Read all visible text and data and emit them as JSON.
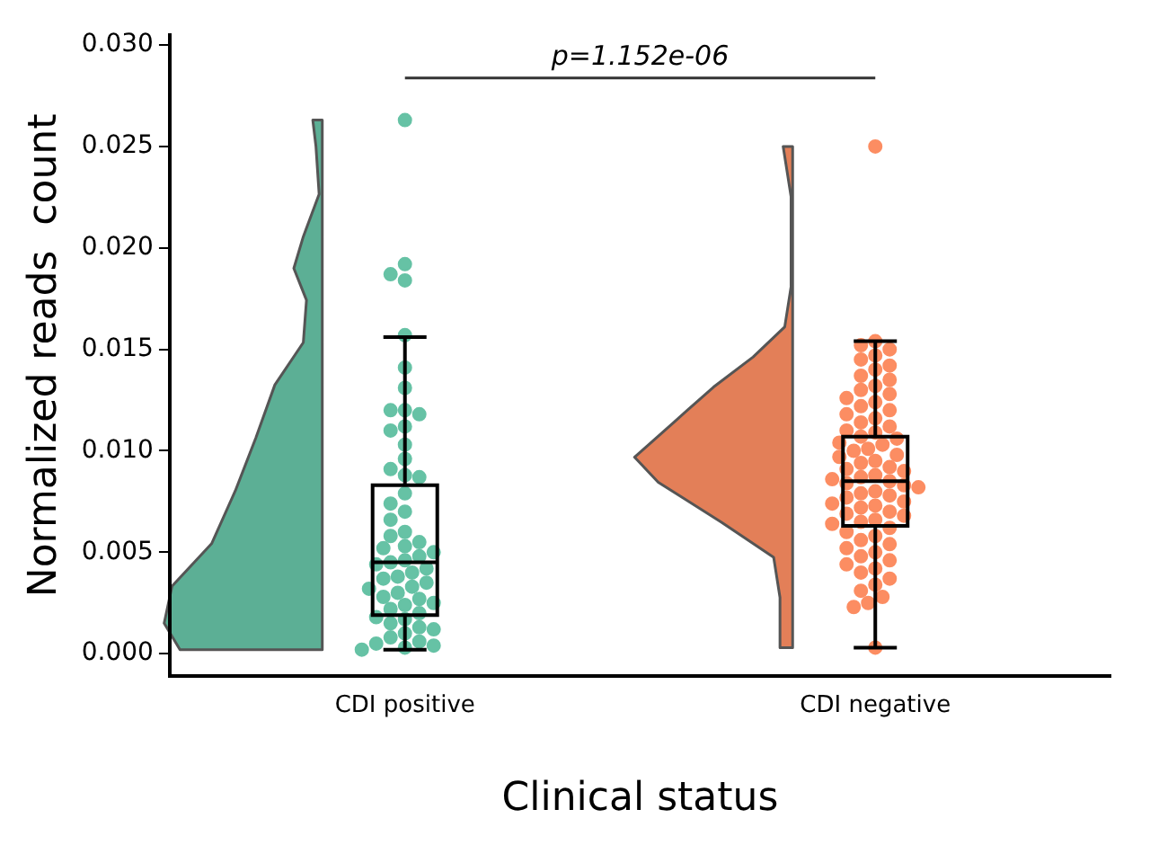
{
  "chart_data": {
    "type": "box",
    "categories": [
      "CDI positive",
      "CDI negative"
    ],
    "xlabel": "Clinical status",
    "ylabel": "Normalized reads  count",
    "ylim": [
      -0.0011,
      0.0305
    ],
    "yticks": [
      {
        "value": 0,
        "label": "0.000"
      },
      {
        "value": 0.005,
        "label": "0.005"
      },
      {
        "value": 0.01,
        "label": "0.010"
      },
      {
        "value": 0.015,
        "label": "0.015"
      },
      {
        "value": 0.02,
        "label": "0.020"
      },
      {
        "value": 0.025,
        "label": "0.025"
      },
      {
        "value": 0.03,
        "label": "0.030"
      }
    ],
    "grid": false,
    "legend": false,
    "annotations": [
      "p=1.152e-06"
    ],
    "series": [
      {
        "boxes": [
          {
            "low": 0.0002,
            "q1": 0.0019,
            "median": 0.0045,
            "q3": 0.0083,
            "high": 0.0156
          },
          {
            "low": 0.0003,
            "q1": 0.0063,
            "median": 0.0085,
            "q3": 0.0107,
            "high": 0.0154
          }
        ]
      },
      {
        "type": "scatter",
        "color": "#66c2a5",
        "x": [
          "CDI positive",
          "CDI positive",
          "CDI positive",
          "CDI positive",
          "CDI positive",
          "CDI positive",
          "CDI positive",
          "CDI positive",
          "CDI positive",
          "CDI positive",
          "CDI positive",
          "CDI positive",
          "CDI positive",
          "CDI positive",
          "CDI positive",
          "CDI positive",
          "CDI positive",
          "CDI positive",
          "CDI positive",
          "CDI positive",
          "CDI positive",
          "CDI positive",
          "CDI positive",
          "CDI positive",
          "CDI positive",
          "CDI positive",
          "CDI positive",
          "CDI positive",
          "CDI positive",
          "CDI positive",
          "CDI positive",
          "CDI positive",
          "CDI positive",
          "CDI positive",
          "CDI positive",
          "CDI positive",
          "CDI positive",
          "CDI positive",
          "CDI positive",
          "CDI positive",
          "CDI positive",
          "CDI positive",
          "CDI positive",
          "CDI positive",
          "CDI positive",
          "CDI positive",
          "CDI positive",
          "CDI positive",
          "CDI positive",
          "CDI positive",
          "CDI positive",
          "CDI positive",
          "CDI positive",
          "CDI positive",
          "CDI positive",
          "CDI positive",
          "CDI positive"
        ],
        "values": [
          0.0263,
          0.0192,
          0.0184,
          0.0187,
          0.0157,
          0.0141,
          0.0131,
          0.012,
          0.012,
          0.0118,
          0.0112,
          0.011,
          0.0103,
          0.0096,
          0.0091,
          0.0088,
          0.0087,
          0.0079,
          0.0074,
          0.007,
          0.0066,
          0.006,
          0.0058,
          0.0055,
          0.0053,
          0.0052,
          0.005,
          0.0048,
          0.0046,
          0.0045,
          0.0044,
          0.0042,
          0.004,
          0.0038,
          0.0037,
          0.0035,
          0.0033,
          0.0032,
          0.003,
          0.0028,
          0.0027,
          0.0025,
          0.0024,
          0.0022,
          0.002,
          0.0018,
          0.0017,
          0.0015,
          0.0013,
          0.0012,
          0.001,
          0.0008,
          0.0006,
          0.0005,
          0.0004,
          0.0003,
          0.0002
        ]
      },
      {
        "type": "scatter",
        "color": "#fc8d62",
        "x": [
          "CDI negative",
          "CDI negative",
          "CDI negative",
          "CDI negative",
          "CDI negative",
          "CDI negative",
          "CDI negative",
          "CDI negative",
          "CDI negative",
          "CDI negative",
          "CDI negative",
          "CDI negative",
          "CDI negative",
          "CDI negative",
          "CDI negative",
          "CDI negative",
          "CDI negative",
          "CDI negative",
          "CDI negative",
          "CDI negative",
          "CDI negative",
          "CDI negative",
          "CDI negative",
          "CDI negative",
          "CDI negative",
          "CDI negative",
          "CDI negative",
          "CDI negative",
          "CDI negative",
          "CDI negative",
          "CDI negative",
          "CDI negative",
          "CDI negative",
          "CDI negative",
          "CDI negative",
          "CDI negative",
          "CDI negative",
          "CDI negative",
          "CDI negative",
          "CDI negative",
          "CDI negative",
          "CDI negative",
          "CDI negative",
          "CDI negative",
          "CDI negative",
          "CDI negative",
          "CDI negative",
          "CDI negative",
          "CDI negative",
          "CDI negative",
          "CDI negative",
          "CDI negative",
          "CDI negative",
          "CDI negative",
          "CDI negative",
          "CDI negative",
          "CDI negative",
          "CDI negative",
          "CDI negative",
          "CDI negative",
          "CDI negative",
          "CDI negative",
          "CDI negative",
          "CDI negative",
          "CDI negative",
          "CDI negative",
          "CDI negative",
          "CDI negative",
          "CDI negative",
          "CDI negative",
          "CDI negative",
          "CDI negative",
          "CDI negative",
          "CDI negative",
          "CDI negative",
          "CDI negative"
        ],
        "values": [
          0.025,
          0.0154,
          0.0152,
          0.015,
          0.0147,
          0.0145,
          0.0142,
          0.014,
          0.0137,
          0.0135,
          0.0132,
          0.013,
          0.0128,
          0.0126,
          0.0124,
          0.0122,
          0.012,
          0.0118,
          0.0116,
          0.0114,
          0.0112,
          0.011,
          0.0109,
          0.0107,
          0.0106,
          0.0104,
          0.0103,
          0.0101,
          0.01,
          0.0098,
          0.0097,
          0.0095,
          0.0094,
          0.0092,
          0.0091,
          0.009,
          0.0088,
          0.0087,
          0.0086,
          0.0085,
          0.0084,
          0.0083,
          0.0082,
          0.008,
          0.0079,
          0.0078,
          0.0077,
          0.0075,
          0.0074,
          0.0073,
          0.0072,
          0.007,
          0.0069,
          0.0068,
          0.0066,
          0.0065,
          0.0064,
          0.0062,
          0.006,
          0.0058,
          0.0056,
          0.0054,
          0.0052,
          0.005,
          0.0048,
          0.0046,
          0.0044,
          0.0042,
          0.004,
          0.0037,
          0.0034,
          0.0031,
          0.0028,
          0.0025,
          0.0023,
          0.0003
        ]
      }
    ]
  }
}
